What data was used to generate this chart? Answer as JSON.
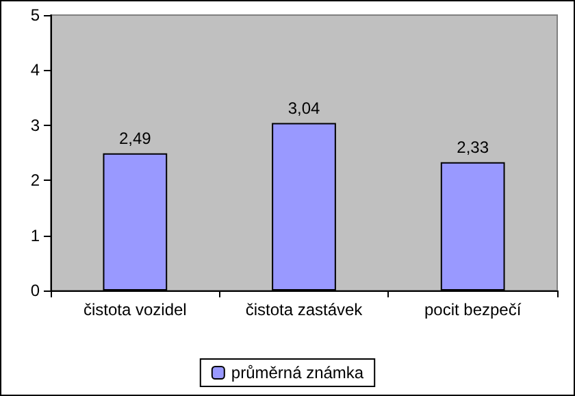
{
  "chart_data": {
    "type": "bar",
    "categories": [
      "čistota vozidel",
      "čistota zastávek",
      "pocit bezpečí"
    ],
    "series": [
      {
        "name": "průměrná známka",
        "color": "#9999ff",
        "values": [
          2.49,
          3.04,
          2.33
        ],
        "value_labels": [
          "2,49",
          "3,04",
          "2,33"
        ]
      }
    ],
    "ylim": [
      0,
      5
    ],
    "yticks": [
      0,
      1,
      2,
      3,
      4,
      5
    ],
    "grid": false,
    "legend": "bottom"
  }
}
